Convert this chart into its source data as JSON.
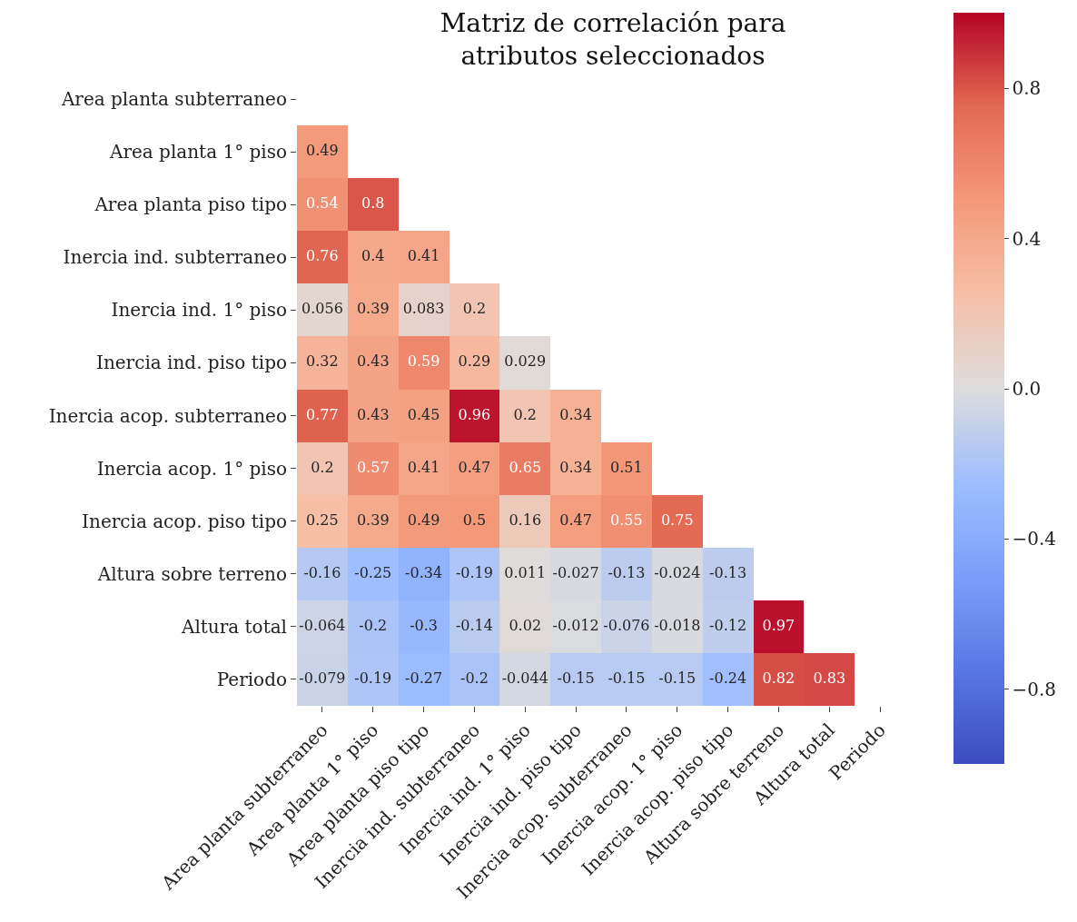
{
  "chart_data": {
    "type": "heatmap",
    "title": "Matriz de correlación para\natributos seleccionados",
    "categories": [
      "Area planta subterraneo",
      "Area planta 1° piso",
      "Area planta piso tipo",
      "Inercia ind. subterraneo",
      "Inercia ind. 1° piso",
      "Inercia ind. piso tipo",
      "Inercia acop. subterraneo",
      "Inercia acop. 1° piso",
      "Inercia acop. piso tipo",
      "Altura sobre terreno",
      "Altura total",
      "Periodo"
    ],
    "y_categories": [
      "Area planta subterraneo",
      "Area planta 1° piso",
      "Area planta piso tipo",
      "Inercia ind. subterraneo",
      "Inercia ind. 1° piso",
      "Inercia ind. piso tipo",
      "Inercia acop. subterraneo",
      "Inercia acop. 1° piso",
      "Inercia acop. piso tipo",
      "Altura sobre terreno",
      "Altura total",
      "Periodo"
    ],
    "cells": [
      [
        null,
        null,
        null,
        null,
        null,
        null,
        null,
        null,
        null,
        null,
        null,
        null
      ],
      [
        0.49,
        null,
        null,
        null,
        null,
        null,
        null,
        null,
        null,
        null,
        null,
        null
      ],
      [
        0.54,
        0.8,
        null,
        null,
        null,
        null,
        null,
        null,
        null,
        null,
        null,
        null
      ],
      [
        0.76,
        0.4,
        0.41,
        null,
        null,
        null,
        null,
        null,
        null,
        null,
        null,
        null
      ],
      [
        0.056,
        0.39,
        0.083,
        0.2,
        null,
        null,
        null,
        null,
        null,
        null,
        null,
        null
      ],
      [
        0.32,
        0.43,
        0.59,
        0.29,
        0.029,
        null,
        null,
        null,
        null,
        null,
        null,
        null
      ],
      [
        0.77,
        0.43,
        0.45,
        0.96,
        0.2,
        0.34,
        null,
        null,
        null,
        null,
        null,
        null
      ],
      [
        0.2,
        0.57,
        0.41,
        0.47,
        0.65,
        0.34,
        0.51,
        null,
        null,
        null,
        null,
        null
      ],
      [
        0.25,
        0.39,
        0.49,
        0.5,
        0.16,
        0.47,
        0.55,
        0.75,
        null,
        null,
        null,
        null
      ],
      [
        -0.16,
        -0.25,
        -0.34,
        -0.19,
        0.011,
        -0.027,
        -0.13,
        -0.024,
        -0.13,
        null,
        null,
        null
      ],
      [
        -0.064,
        -0.2,
        -0.3,
        -0.14,
        0.02,
        -0.012,
        -0.076,
        -0.018,
        -0.12,
        0.97,
        null,
        null
      ],
      [
        -0.079,
        -0.19,
        -0.27,
        -0.2,
        -0.044,
        -0.15,
        -0.15,
        -0.15,
        -0.24,
        0.82,
        0.83,
        null
      ]
    ],
    "clim": [
      -1,
      1
    ],
    "cticks": [
      {
        "value": -0.8,
        "label": "−0.8"
      },
      {
        "value": -0.4,
        "label": "−0.4"
      },
      {
        "value": 0.0,
        "label": "0.0"
      },
      {
        "value": 0.4,
        "label": "0.4"
      },
      {
        "value": 0.8,
        "label": "0.8"
      }
    ],
    "data_labels": true
  }
}
